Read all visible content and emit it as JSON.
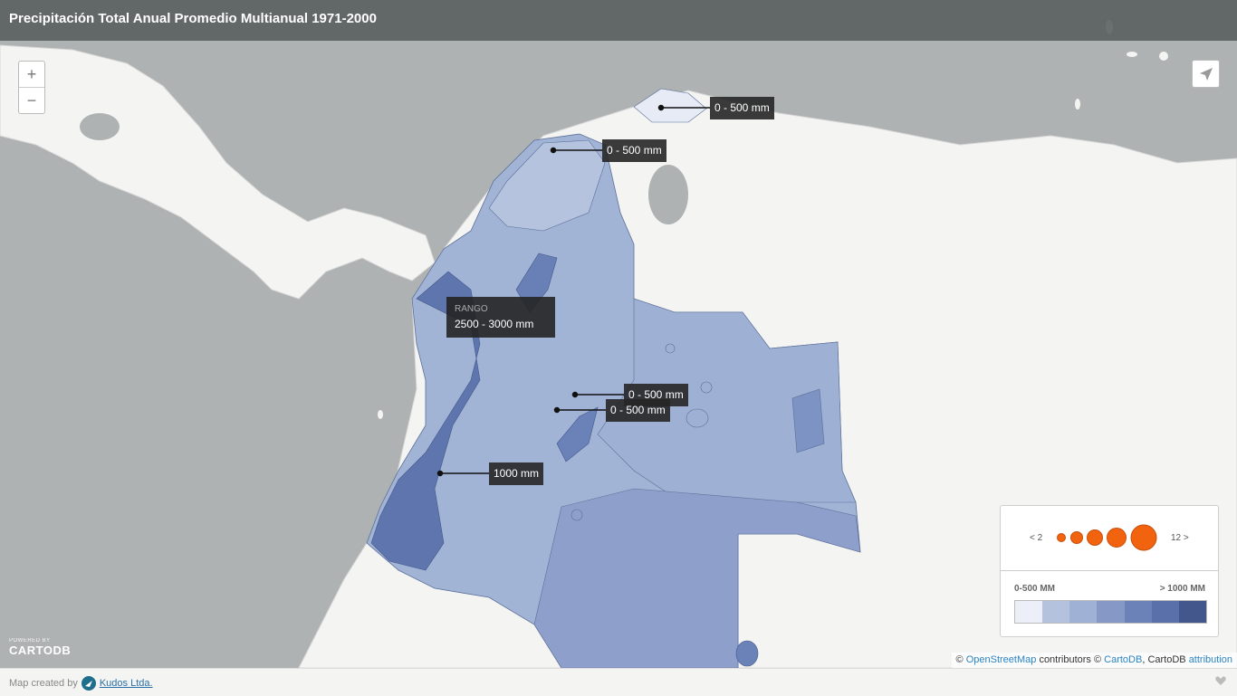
{
  "title": "Precipitación Total Anual Promedio Multianual 1971-2000",
  "zoom": {
    "in_label": "+",
    "out_label": "−"
  },
  "tooltip": {
    "header": "RANGO",
    "value": "2500 - 3000 mm"
  },
  "labels": [
    "0 - 500 mm",
    "0 - 500 mm",
    "0 - 500 mm",
    "0 - 500 mm",
    "1000 mm"
  ],
  "legend": {
    "bubble_min": "< 2",
    "bubble_max": "12 >",
    "choropleth_min": "0-500 MM",
    "choropleth_max": "> 1000 MM",
    "bubble_color": "#f2630f",
    "ramp_colors": [
      "#eceff7",
      "#b5c2dd",
      "#9fb1d4",
      "#8699c6",
      "#6b82b9",
      "#5a70ab",
      "#43578c"
    ]
  },
  "branding": {
    "powered": "POWERED BY",
    "name": "CARTODB"
  },
  "attribution": {
    "copy1": "©",
    "osm": "OpenStreetMap",
    "contrib": "contributors ©",
    "cartodb": "CartoDB",
    "comma": ", CartoDB",
    "attribution": "attribution"
  },
  "footer": {
    "created_by": "Map created by",
    "company": "Kudos Ltda."
  }
}
